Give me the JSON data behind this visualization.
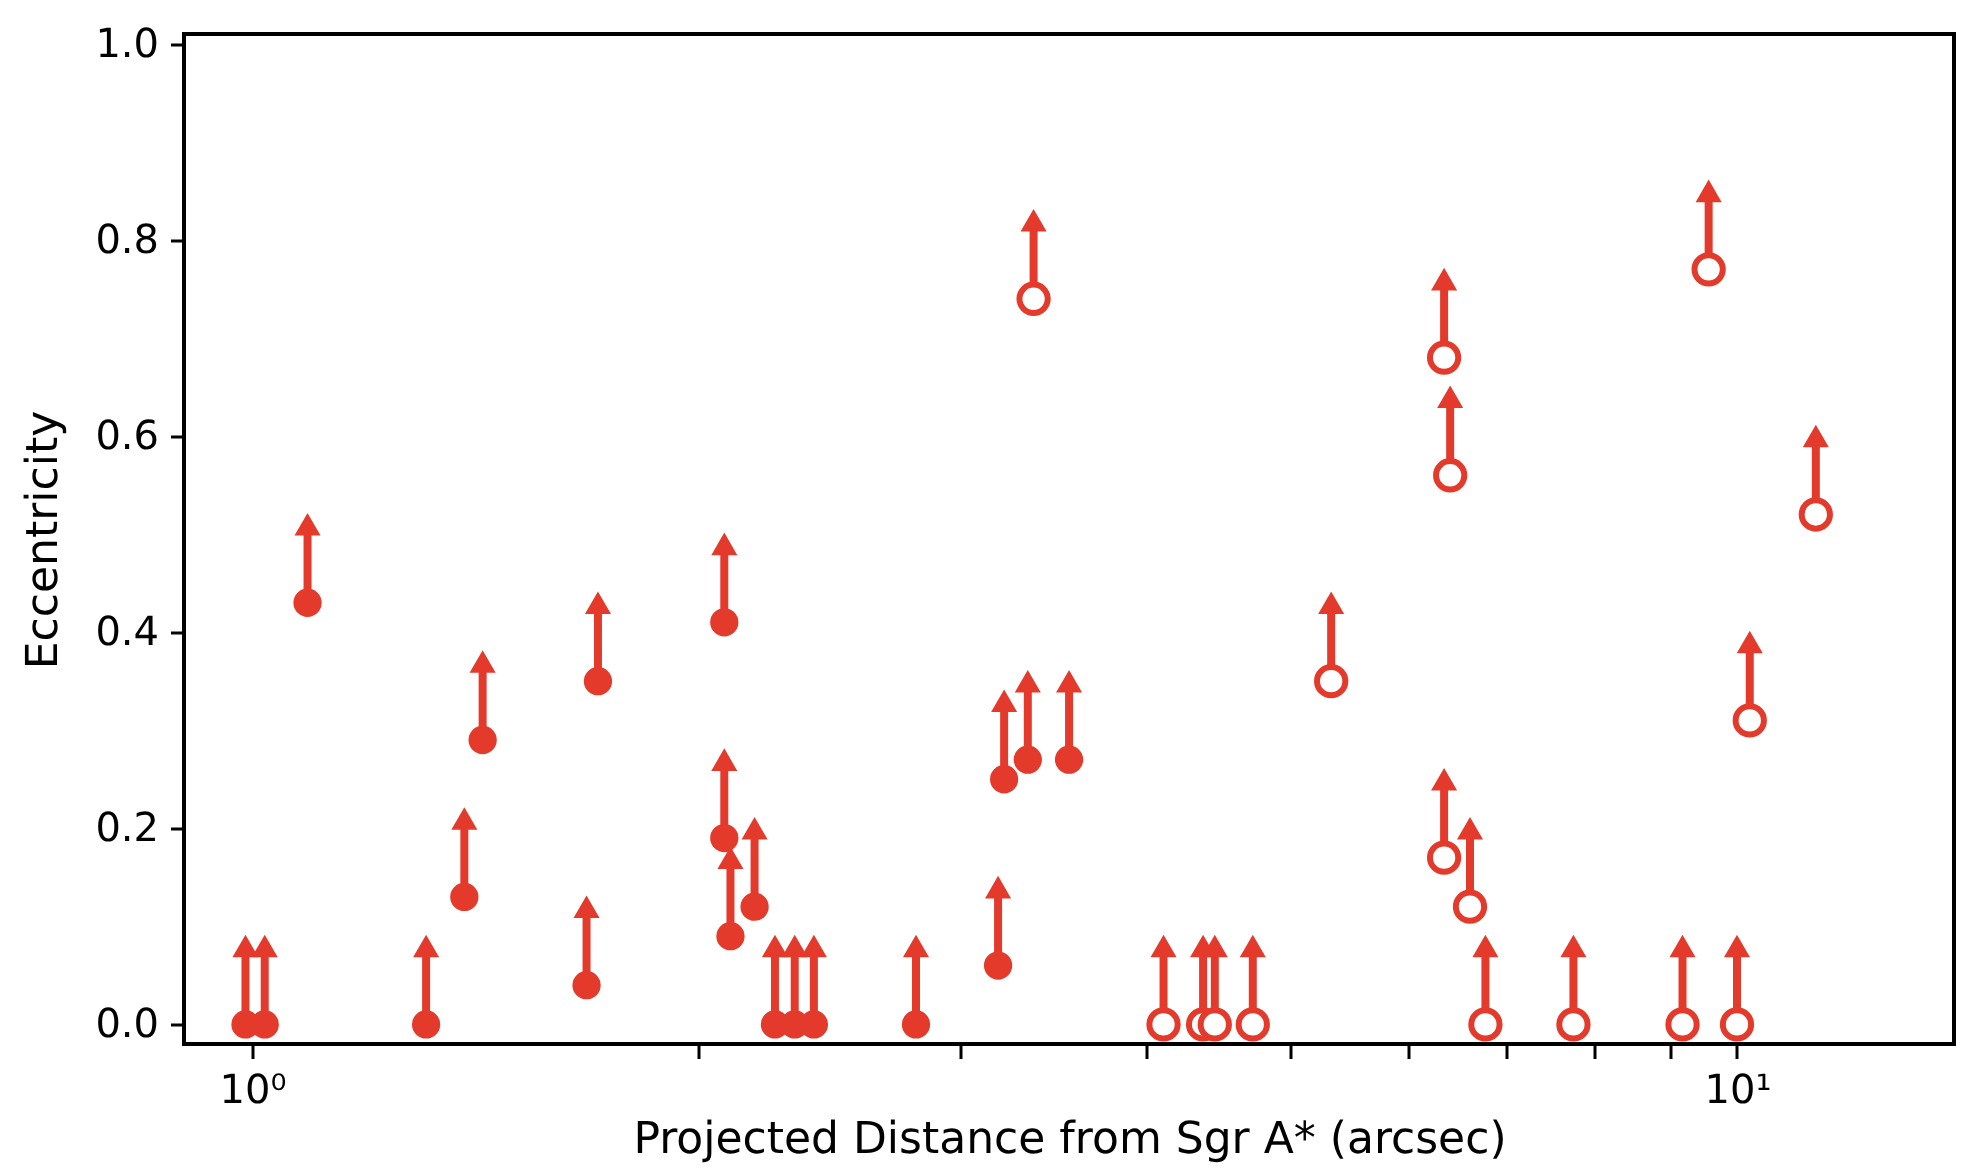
{
  "chart_data": {
    "type": "scatter",
    "xlabel": "Projected Distance from Sgr A* (arcsec)",
    "ylabel": "Eccentricity",
    "log": "x",
    "grid": false,
    "xlim": [
      0.9,
      14
    ],
    "ylim": [
      -0.02,
      1.01
    ],
    "xticks": [
      {
        "value": 1,
        "label": "10⁰"
      },
      {
        "value": 2,
        "label": null
      },
      {
        "value": 3,
        "label": null
      },
      {
        "value": 4,
        "label": null
      },
      {
        "value": 5,
        "label": null
      },
      {
        "value": 6,
        "label": null
      },
      {
        "value": 7,
        "label": null
      },
      {
        "value": 8,
        "label": null
      },
      {
        "value": 9,
        "label": null
      },
      {
        "value": 10,
        "label": "10¹"
      }
    ],
    "yticks": [
      {
        "value": 0,
        "label": "0.0"
      },
      0.2,
      0.4,
      0.6,
      0.8,
      {
        "value": 1,
        "label": "1.0"
      }
    ],
    "series": [
      {
        "marker": "circle",
        "color": "#e43a2c",
        "x": [
          0.99,
          1.02,
          1.09,
          1.31,
          1.39,
          1.43,
          1.68,
          1.71,
          2.08,
          2.08,
          2.1,
          2.18,
          2.25,
          2.32,
          2.39,
          2.8,
          3.18,
          3.21,
          3.33,
          3.55
        ],
        "values": [
          0,
          0,
          0.43,
          0,
          0.13,
          0.29,
          0.04,
          0.35,
          0.41,
          0.19,
          0.09,
          0.12,
          0,
          0,
          0,
          0,
          0.06,
          0.25,
          0.27,
          0.27
        ],
        "errors": [
          [
            0,
            0.08
          ],
          [
            0,
            0.08
          ],
          [
            0.43,
            0.51
          ],
          [
            0,
            0.08
          ],
          [
            0.13,
            0.21
          ],
          [
            0.29,
            0.37
          ],
          [
            0.04,
            0.12
          ],
          [
            0.35,
            0.43
          ],
          [
            0.41,
            0.49
          ],
          [
            0.19,
            0.27
          ],
          [
            0.09,
            0.17
          ],
          [
            0.12,
            0.2
          ],
          [
            0,
            0.08
          ],
          [
            0,
            0.08
          ],
          [
            0,
            0.08
          ],
          [
            0,
            0.08
          ],
          [
            0.06,
            0.14
          ],
          [
            0.25,
            0.33
          ],
          [
            0.27,
            0.35
          ],
          [
            0.27,
            0.35
          ]
        ]
      },
      {
        "marker": "open circle",
        "color": "#e43a2c",
        "x": [
          3.36,
          4.11,
          4.37,
          4.45,
          4.72,
          5.33,
          6.35,
          6.41,
          6.35,
          6.61,
          6.77,
          7.76,
          9.19,
          9.57,
          10.0,
          10.2,
          11.3
        ],
        "values": [
          0.74,
          0,
          0,
          0,
          0,
          0.35,
          0.68,
          0.56,
          0.17,
          0.12,
          0,
          0,
          0,
          0.77,
          0,
          0.31,
          0.52
        ],
        "errors": [
          [
            0.74,
            0.82
          ],
          [
            0,
            0.08
          ],
          [
            0,
            0.08
          ],
          [
            0,
            0.08
          ],
          [
            0,
            0.08
          ],
          [
            0.35,
            0.43
          ],
          [
            0.68,
            0.76
          ],
          [
            0.56,
            0.64
          ],
          [
            0.17,
            0.25
          ],
          [
            0.12,
            0.2
          ],
          [
            0,
            0.08
          ],
          [
            0,
            0.08
          ],
          [
            0,
            0.08
          ],
          [
            0.77,
            0.85
          ],
          [
            0,
            0.08
          ],
          [
            0.31,
            0.39
          ],
          [
            0.52,
            0.6
          ]
        ]
      }
    ]
  }
}
